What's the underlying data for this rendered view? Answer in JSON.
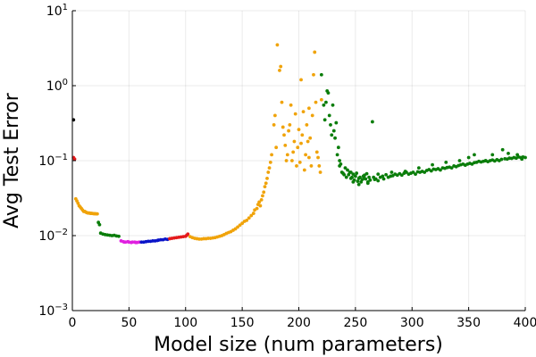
{
  "chart_data": {
    "type": "scatter",
    "title": "",
    "xlabel": "Model size (num parameters)",
    "ylabel": "Avg Test Error",
    "xlim": [
      0,
      400
    ],
    "ylim": [
      0.001,
      10
    ],
    "yscale": "log",
    "grid": true,
    "legend": "none",
    "xticks": [
      0,
      50,
      100,
      150,
      200,
      250,
      300,
      350,
      400
    ],
    "yticks": [
      {
        "value": 0.001,
        "base": "10",
        "exp": "−3"
      },
      {
        "value": 0.01,
        "base": "10",
        "exp": "−2"
      },
      {
        "value": 0.1,
        "base": "10",
        "exp": "−1"
      },
      {
        "value": 1,
        "base": "10",
        "exp": "0"
      },
      {
        "value": 10,
        "base": "10",
        "exp": "1"
      }
    ],
    "series": [
      {
        "color": "#000000",
        "points": [
          [
            1,
            0.35
          ]
        ]
      },
      {
        "color": "#e41a1c",
        "points": [
          [
            1,
            0.11
          ],
          [
            2,
            0.105
          ]
        ]
      },
      {
        "color": "#f0a30a",
        "points": [
          [
            3,
            0.031
          ],
          [
            4,
            0.029
          ],
          [
            5,
            0.027
          ],
          [
            6,
            0.025
          ],
          [
            7,
            0.024
          ],
          [
            8,
            0.023
          ],
          [
            9,
            0.022
          ],
          [
            10,
            0.021
          ],
          [
            11,
            0.021
          ],
          [
            12,
            0.0205
          ],
          [
            13,
            0.0202
          ],
          [
            14,
            0.02
          ],
          [
            15,
            0.02
          ],
          [
            16,
            0.0198
          ],
          [
            17,
            0.0198
          ],
          [
            18,
            0.0197
          ],
          [
            19,
            0.0196
          ],
          [
            20,
            0.0196
          ],
          [
            21,
            0.0195
          ],
          [
            22,
            0.0195
          ]
        ]
      },
      {
        "color": "#0a7d0a",
        "points": [
          [
            23,
            0.015
          ],
          [
            24,
            0.014
          ],
          [
            25,
            0.0108
          ],
          [
            27,
            0.0105
          ],
          [
            29,
            0.0103
          ],
          [
            31,
            0.0102
          ],
          [
            33,
            0.0101
          ],
          [
            35,
            0.01
          ],
          [
            37,
            0.0101
          ],
          [
            39,
            0.0099
          ],
          [
            41,
            0.0098
          ]
        ]
      },
      {
        "color": "#e020e0",
        "points": [
          [
            43,
            0.0085
          ],
          [
            45,
            0.0083
          ],
          [
            46,
            0.0082
          ],
          [
            47,
            0.0082
          ],
          [
            49,
            0.0083
          ],
          [
            50,
            0.0082
          ],
          [
            52,
            0.0081
          ],
          [
            53,
            0.0082
          ],
          [
            55,
            0.0082
          ],
          [
            56,
            0.0081
          ],
          [
            57,
            0.0081
          ],
          [
            59,
            0.0082
          ]
        ]
      },
      {
        "color": "#0a14c8",
        "points": [
          [
            61,
            0.0082
          ],
          [
            63,
            0.0082
          ],
          [
            65,
            0.0083
          ],
          [
            67,
            0.0084
          ],
          [
            69,
            0.0084
          ],
          [
            71,
            0.0085
          ],
          [
            73,
            0.0085
          ],
          [
            75,
            0.0086
          ],
          [
            76,
            0.0087
          ],
          [
            78,
            0.0088
          ],
          [
            80,
            0.0088
          ],
          [
            82,
            0.009
          ],
          [
            84,
            0.0089
          ]
        ]
      },
      {
        "color": "#e41a1c",
        "points": [
          [
            86,
            0.0091
          ],
          [
            88,
            0.0092
          ],
          [
            90,
            0.0093
          ],
          [
            92,
            0.0094
          ],
          [
            94,
            0.0095
          ],
          [
            96,
            0.0096
          ],
          [
            98,
            0.0097
          ],
          [
            100,
            0.0098
          ],
          [
            101,
            0.0101
          ],
          [
            102,
            0.0105
          ]
        ]
      },
      {
        "color": "#f0a30a",
        "points": [
          [
            104,
            0.0097
          ],
          [
            106,
            0.0094
          ],
          [
            108,
            0.0092
          ],
          [
            110,
            0.0091
          ],
          [
            112,
            0.009
          ],
          [
            114,
            0.009
          ],
          [
            116,
            0.0091
          ],
          [
            118,
            0.0091
          ],
          [
            120,
            0.0092
          ],
          [
            122,
            0.0092
          ],
          [
            124,
            0.0093
          ],
          [
            126,
            0.0094
          ],
          [
            128,
            0.0096
          ],
          [
            130,
            0.0098
          ],
          [
            132,
            0.01
          ],
          [
            134,
            0.0103
          ],
          [
            136,
            0.0107
          ],
          [
            138,
            0.011
          ],
          [
            140,
            0.0113
          ],
          [
            142,
            0.0118
          ],
          [
            144,
            0.0123
          ],
          [
            146,
            0.013
          ],
          [
            148,
            0.0138
          ],
          [
            150,
            0.0146
          ],
          [
            152,
            0.0155
          ],
          [
            154,
            0.016
          ],
          [
            156,
            0.0172
          ],
          [
            158,
            0.0185
          ],
          [
            160,
            0.0198
          ],
          [
            161,
            0.022
          ],
          [
            163,
            0.023
          ],
          [
            164,
            0.026
          ],
          [
            165,
            0.028
          ],
          [
            166,
            0.025
          ],
          [
            167,
            0.03
          ],
          [
            168,
            0.034
          ],
          [
            169,
            0.038
          ],
          [
            170,
            0.045
          ],
          [
            171,
            0.05
          ],
          [
            172,
            0.058
          ],
          [
            173,
            0.07
          ],
          [
            174,
            0.08
          ],
          [
            175,
            0.095
          ],
          [
            176,
            0.12
          ],
          [
            178,
            0.3
          ],
          [
            179,
            0.4
          ],
          [
            180,
            0.15
          ],
          [
            181,
            3.5
          ],
          [
            183,
            1.6
          ],
          [
            184,
            1.8
          ],
          [
            185,
            0.6
          ],
          [
            186,
            0.28
          ],
          [
            187,
            0.22
          ],
          [
            188,
            0.16
          ],
          [
            189,
            0.1
          ],
          [
            190,
            0.12
          ],
          [
            191,
            0.25
          ],
          [
            192,
            0.3
          ],
          [
            193,
            0.55
          ],
          [
            194,
            0.1
          ],
          [
            195,
            0.13
          ],
          [
            196,
            0.18
          ],
          [
            197,
            0.42
          ],
          [
            198,
            0.085
          ],
          [
            199,
            0.15
          ],
          [
            200,
            0.26
          ],
          [
            201,
            0.095
          ],
          [
            202,
            0.17
          ],
          [
            203,
            0.22
          ],
          [
            204,
            0.45
          ],
          [
            205,
            0.075
          ],
          [
            206,
            0.12
          ],
          [
            207,
            0.3
          ],
          [
            208,
            0.18
          ],
          [
            209,
            0.11
          ],
          [
            210,
            0.2
          ],
          [
            211,
            0.085
          ],
          [
            212,
            0.4
          ],
          [
            213,
            1.4
          ],
          [
            214,
            2.8
          ],
          [
            215,
            0.6
          ],
          [
            216,
            0.13
          ],
          [
            217,
            0.11
          ],
          [
            218,
            0.085
          ],
          [
            219,
            0.07
          ],
          [
            220,
            0.65
          ],
          [
            209,
            0.5
          ],
          [
            202,
            1.2
          ]
        ]
      },
      {
        "color": "#0a7d0a",
        "points": [
          [
            220,
            1.4
          ],
          [
            222,
            0.55
          ],
          [
            223,
            0.35
          ],
          [
            224,
            0.6
          ],
          [
            225,
            0.85
          ],
          [
            226,
            0.8
          ],
          [
            227,
            0.4
          ],
          [
            228,
            0.3
          ],
          [
            229,
            0.22
          ],
          [
            230,
            0.55
          ],
          [
            231,
            0.25
          ],
          [
            232,
            0.2
          ],
          [
            233,
            0.32
          ],
          [
            234,
            0.12
          ],
          [
            235,
            0.15
          ],
          [
            236,
            0.1
          ],
          [
            237,
            0.09
          ],
          [
            238,
            0.07
          ],
          [
            239,
            0.068
          ],
          [
            240,
            0.065
          ],
          [
            241,
            0.08
          ],
          [
            242,
            0.06
          ],
          [
            243,
            0.075
          ],
          [
            244,
            0.065
          ],
          [
            245,
            0.07
          ],
          [
            246,
            0.058
          ],
          [
            247,
            0.06
          ],
          [
            248,
            0.066
          ],
          [
            249,
            0.055
          ],
          [
            250,
            0.062
          ],
          [
            251,
            0.068
          ],
          [
            252,
            0.053
          ],
          [
            253,
            0.058
          ],
          [
            254,
            0.06
          ],
          [
            255,
            0.052
          ],
          [
            256,
            0.056
          ],
          [
            257,
            0.062
          ],
          [
            258,
            0.058
          ],
          [
            259,
            0.057
          ],
          [
            260,
            0.067
          ],
          [
            261,
            0.052
          ],
          [
            262,
            0.06
          ],
          [
            263,
            0.055
          ],
          [
            265,
            0.33
          ],
          [
            266,
            0.06
          ],
          [
            267,
            0.056
          ],
          [
            268,
            0.057
          ],
          [
            270,
            0.054
          ],
          [
            272,
            0.06
          ],
          [
            274,
            0.062
          ],
          [
            275,
            0.057
          ],
          [
            277,
            0.065
          ],
          [
            279,
            0.06
          ],
          [
            281,
            0.062
          ],
          [
            283,
            0.063
          ],
          [
            285,
            0.066
          ],
          [
            287,
            0.064
          ],
          [
            289,
            0.067
          ],
          [
            291,
            0.064
          ],
          [
            293,
            0.068
          ],
          [
            295,
            0.07
          ],
          [
            297,
            0.066
          ],
          [
            299,
            0.068
          ],
          [
            301,
            0.07
          ],
          [
            303,
            0.066
          ],
          [
            305,
            0.071
          ],
          [
            307,
            0.07
          ],
          [
            309,
            0.072
          ],
          [
            311,
            0.07
          ],
          [
            313,
            0.074
          ],
          [
            315,
            0.076
          ],
          [
            317,
            0.073
          ],
          [
            319,
            0.077
          ],
          [
            321,
            0.076
          ],
          [
            323,
            0.078
          ],
          [
            325,
            0.075
          ],
          [
            327,
            0.08
          ],
          [
            329,
            0.079
          ],
          [
            331,
            0.081
          ],
          [
            333,
            0.082
          ],
          [
            335,
            0.08
          ],
          [
            337,
            0.085
          ],
          [
            339,
            0.083
          ],
          [
            341,
            0.086
          ],
          [
            343,
            0.088
          ],
          [
            345,
            0.09
          ],
          [
            347,
            0.087
          ],
          [
            349,
            0.09
          ],
          [
            351,
            0.092
          ],
          [
            353,
            0.09
          ],
          [
            355,
            0.094
          ],
          [
            357,
            0.095
          ],
          [
            359,
            0.098
          ],
          [
            361,
            0.096
          ],
          [
            363,
            0.098
          ],
          [
            365,
            0.1
          ],
          [
            367,
            0.097
          ],
          [
            369,
            0.1
          ],
          [
            371,
            0.102
          ],
          [
            373,
            0.099
          ],
          [
            375,
            0.103
          ],
          [
            377,
            0.1
          ],
          [
            379,
            0.104
          ],
          [
            380,
            0.14
          ],
          [
            382,
            0.106
          ],
          [
            384,
            0.105
          ],
          [
            386,
            0.108
          ],
          [
            388,
            0.107
          ],
          [
            390,
            0.11
          ],
          [
            392,
            0.108
          ],
          [
            394,
            0.112
          ],
          [
            396,
            0.11
          ],
          [
            398,
            0.112
          ],
          [
            400,
            0.11
          ],
          [
            365,
            0.1
          ],
          [
            355,
            0.12
          ],
          [
            350,
            0.11
          ],
          [
            342,
            0.1
          ],
          [
            330,
            0.095
          ],
          [
            318,
            0.088
          ],
          [
            306,
            0.08
          ],
          [
            294,
            0.072
          ],
          [
            282,
            0.07
          ],
          [
            270,
            0.066
          ],
          [
            258,
            0.064
          ],
          [
            246,
            0.07
          ],
          [
            236,
            0.085
          ],
          [
            248,
            0.052
          ],
          [
            261,
            0.05
          ],
          [
            253,
            0.048
          ],
          [
            371,
            0.12
          ],
          [
            385,
            0.125
          ],
          [
            393,
            0.12
          ],
          [
            397,
            0.105
          ]
        ]
      }
    ]
  }
}
